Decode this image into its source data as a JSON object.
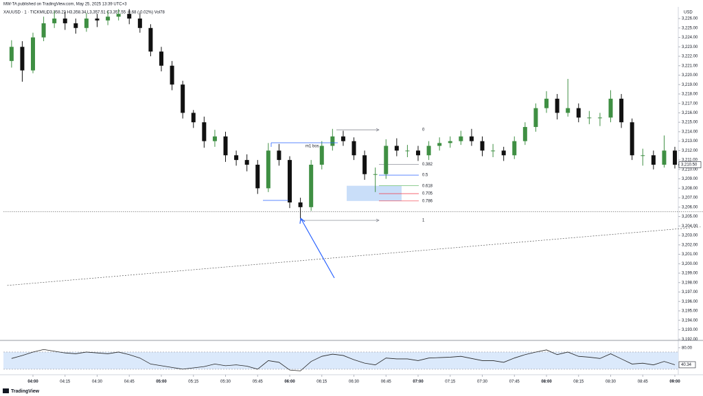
{
  "chart_data": {
    "type": "candlestick",
    "publisher": "MW-TA published on TradingView.com, May 25, 2025 13:39 UTC+3",
    "symbol": "XAUUSD · 1 · TICKMILL",
    "legend_ohlc": "O3,358.23 H3,358.34 L3,357.51 C3,357.55 -0.68 (-0.02%) Vol78",
    "currency": "USD",
    "brand": "TradingView",
    "up_color": "#3f8f43",
    "down_color": "#111111",
    "x": [
      230,
      235,
      240,
      245,
      250,
      255,
      260,
      265,
      270,
      275,
      280,
      285,
      290,
      295,
      300,
      305,
      310,
      315,
      320,
      325,
      330,
      335,
      340,
      345,
      350,
      355,
      360,
      365,
      370,
      375,
      380,
      385,
      390,
      395,
      400,
      405,
      410,
      415,
      420,
      425,
      430,
      435,
      440,
      445,
      450,
      455,
      460,
      465,
      470,
      475,
      480,
      485,
      490,
      495,
      500,
      505,
      510,
      515,
      520,
      525,
      530,
      535,
      540
    ],
    "open": [
      3221.5,
      3223,
      3220.5,
      3224,
      3225.5,
      3226,
      3225.5,
      3225,
      3226,
      3225.8,
      3226.2,
      3226.5,
      3226,
      3225,
      3222.5,
      3221,
      3219,
      3216,
      3215,
      3213,
      3213.5,
      3211.5,
      3211,
      3210.5,
      3208,
      3212,
      3211,
      3206.5,
      3206,
      3210.5,
      3212.5,
      3213.5,
      3213,
      3211.5,
      3209.5,
      3209.5,
      3212.5,
      3212,
      3212,
      3211.5,
      3212.5,
      3212.8,
      3213,
      3213.5,
      3213,
      3212,
      3212,
      3211.5,
      3213,
      3214.5,
      3216.5,
      3217.5,
      3216,
      3216.5,
      3215.5,
      3215.5,
      3215.5,
      3217.5,
      3215,
      3211.5,
      3211.5,
      3210.5,
      3212
    ],
    "high": [
      3223.7,
      3223.6,
      3224.5,
      3226.2,
      3226.8,
      3226.7,
      3226,
      3226.6,
      3226.5,
      3226.8,
      3227,
      3227,
      3226.6,
      3225.4,
      3223,
      3221.5,
      3219.4,
      3216.3,
      3215.6,
      3214.2,
      3214,
      3212,
      3211.6,
      3211,
      3212.8,
      3212.7,
      3211.4,
      3207,
      3211,
      3213,
      3214.3,
      3214.1,
      3213.4,
      3212,
      3210.2,
      3213.2,
      3213.3,
      3212.6,
      3212.5,
      3213,
      3213.4,
      3213.5,
      3214.1,
      3214.3,
      3213.5,
      3212.7,
      3212.4,
      3213.5,
      3215,
      3217,
      3218.3,
      3218,
      3219.6,
      3217,
      3216.2,
      3216,
      3218.4,
      3218,
      3215.4,
      3212.2,
      3212,
      3213.6,
      3212.4
    ],
    "low": [
      3220.8,
      3219.3,
      3220.2,
      3223.6,
      3225,
      3224.8,
      3224.4,
      3224.6,
      3225.1,
      3225.3,
      3225.8,
      3225.4,
      3224.5,
      3222,
      3220.4,
      3218.4,
      3215.4,
      3214.4,
      3212.3,
      3212.4,
      3210.8,
      3210.4,
      3209.8,
      3207.4,
      3207.6,
      3210.4,
      3205.9,
      3204.8,
      3205.6,
      3210,
      3212,
      3212.5,
      3211,
      3208.9,
      3207.6,
      3209,
      3211.4,
      3211.3,
      3210.9,
      3211,
      3212,
      3212.3,
      3212.6,
      3212.5,
      3211.4,
      3211.3,
      3210.9,
      3211.1,
      3212.6,
      3214,
      3216,
      3215.3,
      3215.6,
      3215,
      3214.8,
      3214.6,
      3215,
      3214.4,
      3211,
      3210.4,
      3210,
      3210.2,
      3210.1
    ],
    "close": [
      3223,
      3220.5,
      3224,
      3225.5,
      3226,
      3225.5,
      3225,
      3226,
      3225.8,
      3226.2,
      3226.5,
      3226,
      3225,
      3222.5,
      3221,
      3219,
      3216,
      3215,
      3213,
      3213.5,
      3211.5,
      3211,
      3210.5,
      3208,
      3212,
      3211,
      3206.5,
      3206,
      3210.5,
      3212.5,
      3213.5,
      3213,
      3211.5,
      3209.5,
      3209.5,
      3212.5,
      3212,
      3212,
      3211.5,
      3212.5,
      3212.8,
      3213,
      3213.5,
      3213,
      3212,
      3212,
      3211.5,
      3213,
      3214.5,
      3216.5,
      3217.5,
      3216,
      3216.5,
      3215.5,
      3215.5,
      3215.5,
      3217.5,
      3215,
      3211.5,
      3211.5,
      3210.5,
      3212,
      3210.5
    ],
    "last_price_label": "3,210.50",
    "xlim": [
      226.2,
      541.6
    ],
    "ylim": [
      3191.94,
      3227.24
    ],
    "xticks": [
      {
        "value": 240,
        "label": "04:00"
      },
      {
        "value": 255,
        "label": "04:15"
      },
      {
        "value": 270,
        "label": "04:30"
      },
      {
        "value": 285,
        "label": "04:45"
      },
      {
        "value": 300,
        "label": "05:00"
      },
      {
        "value": 315,
        "label": "05:15"
      },
      {
        "value": 330,
        "label": "05:30"
      },
      {
        "value": 345,
        "label": "05:45"
      },
      {
        "value": 360,
        "label": "06:00"
      },
      {
        "value": 375,
        "label": "06:15"
      },
      {
        "value": 390,
        "label": "06:30"
      },
      {
        "value": 405,
        "label": "06:45"
      },
      {
        "value": 420,
        "label": "07:00"
      },
      {
        "value": 435,
        "label": "07:15"
      },
      {
        "value": 450,
        "label": "07:30"
      },
      {
        "value": 465,
        "label": "07:45"
      },
      {
        "value": 480,
        "label": "08:00"
      },
      {
        "value": 495,
        "label": "08:15"
      },
      {
        "value": 510,
        "label": "08:30"
      },
      {
        "value": 525,
        "label": "08:45"
      },
      {
        "value": 540,
        "label": "09:00"
      }
    ],
    "yticks": [
      {
        "value": 3192,
        "label": "3,192.00"
      },
      {
        "value": 3193,
        "label": "3,193.00"
      },
      {
        "value": 3194,
        "label": "3,194.00"
      },
      {
        "value": 3195,
        "label": "3,195.00"
      },
      {
        "value": 3196,
        "label": "3,196.00"
      },
      {
        "value": 3197,
        "label": "3,197.00"
      },
      {
        "value": 3198,
        "label": "3,198.00"
      },
      {
        "value": 3199,
        "label": "3,199.00"
      },
      {
        "value": 3200,
        "label": "3,200.00"
      },
      {
        "value": 3201,
        "label": "3,201.00"
      },
      {
        "value": 3202,
        "label": "3,202.00"
      },
      {
        "value": 3203,
        "label": "3,203.00"
      },
      {
        "value": 3204,
        "label": "3,204.00"
      },
      {
        "value": 3205,
        "label": "3,205.00"
      },
      {
        "value": 3206,
        "label": "3,206.00"
      },
      {
        "value": 3207,
        "label": "3,207.00"
      },
      {
        "value": 3208,
        "label": "3,208.00"
      },
      {
        "value": 3209,
        "label": "3,209.00"
      },
      {
        "value": 3210,
        "label": "3,210.00"
      },
      {
        "value": 3211,
        "label": "3,211.00"
      },
      {
        "value": 3212,
        "label": "3,212.00"
      },
      {
        "value": 3213,
        "label": "3,213.00"
      },
      {
        "value": 3214,
        "label": "3,214.00"
      },
      {
        "value": 3215,
        "label": "3,215.00"
      },
      {
        "value": 3216,
        "label": "3,216.00"
      },
      {
        "value": 3217,
        "label": "3,217.00"
      },
      {
        "value": 3218,
        "label": "3,218.00"
      },
      {
        "value": 3219,
        "label": "3,219.00"
      },
      {
        "value": 3220,
        "label": "3,220.00"
      },
      {
        "value": 3221,
        "label": "3,221.00"
      },
      {
        "value": 3222,
        "label": "3,222.00"
      },
      {
        "value": 3223,
        "label": "3,223.00"
      },
      {
        "value": 3224,
        "label": "3,224.00"
      },
      {
        "value": 3225,
        "label": "3,225.00"
      },
      {
        "value": 3226,
        "label": "3,226.00"
      }
    ],
    "hline": 3205.5,
    "trendline": {
      "x": [
        228,
        552
      ],
      "y": [
        3197.7,
        3203.9
      ]
    },
    "fib": {
      "high": 3214.2,
      "low": 3204.6,
      "levels": [
        0,
        0.382,
        0.5,
        0.618,
        0.705,
        0.786,
        1
      ],
      "colors": [
        "#787b86",
        "#787b86",
        "#2962ff",
        "#4caf50",
        "#f23645",
        "#f23645",
        "#787b86"
      ]
    },
    "bos_label": "m1 bos",
    "rsi": {
      "values": [
        55,
        62,
        70,
        76,
        72,
        68,
        66,
        70,
        68,
        66,
        70,
        64,
        56,
        42,
        38,
        34,
        30,
        33,
        36,
        42,
        38,
        40,
        37,
        30,
        50,
        46,
        28,
        26,
        48,
        60,
        65,
        62,
        52,
        44,
        40,
        56,
        54,
        54,
        50,
        56,
        57,
        58,
        60,
        55,
        50,
        50,
        46,
        56,
        64,
        70,
        75,
        64,
        70,
        60,
        58,
        55,
        66,
        54,
        42,
        44,
        40,
        48,
        40.34
      ],
      "ylim": [
        17,
        94
      ],
      "yticks": [
        {
          "value": 80,
          "label": "80.00"
        }
      ],
      "band": [
        30,
        70
      ],
      "color": "#222222"
    }
  }
}
